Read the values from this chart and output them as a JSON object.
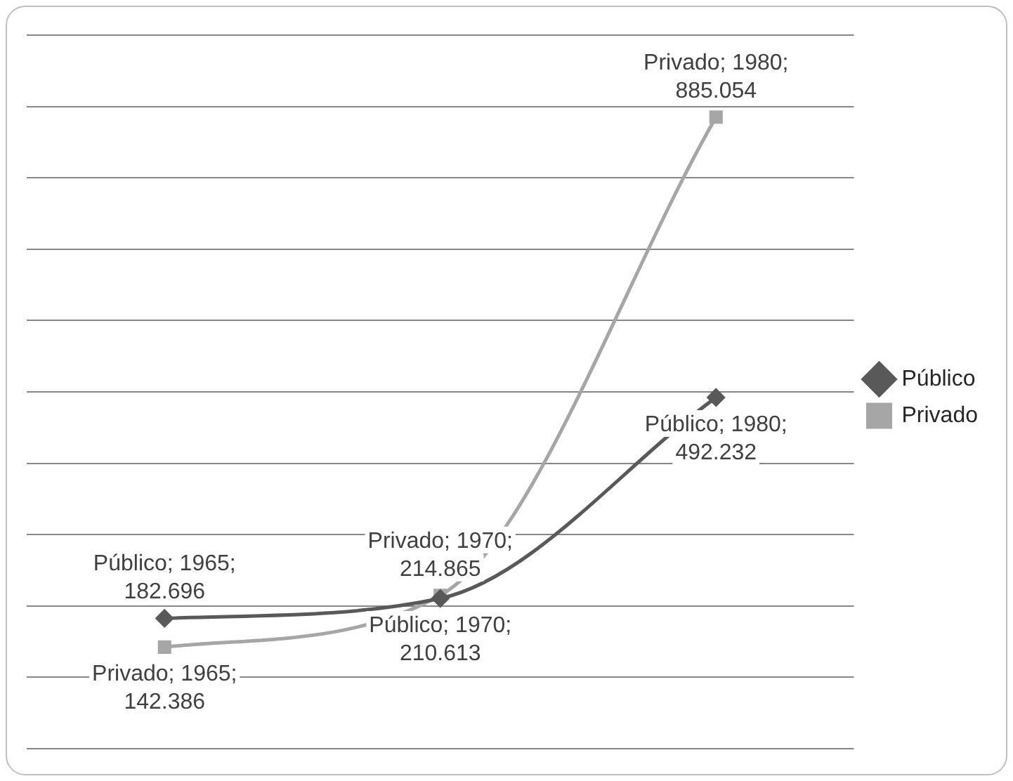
{
  "chart_data": {
    "type": "line",
    "categories": [
      null,
      null,
      null
    ],
    "series": [
      {
        "name": "Público",
        "color": "#595959",
        "marker": "diamond",
        "values": [
          182.696,
          210.613,
          492.232
        ],
        "value_labels": [
          "Público; 1965; 182.696",
          "Público; 1970; 210.613",
          "Público; 1980; 492.232"
        ]
      },
      {
        "name": "Privado",
        "color": "#a6a6a6",
        "marker": "square",
        "values": [
          142.386,
          214.865,
          885.054
        ],
        "value_labels": [
          "Privado; 1965; 142.386",
          "Privado; 1970; 214.865",
          "Privado; 1980; 885.054"
        ]
      }
    ],
    "ylim": [
      0,
      1000
    ],
    "yticks": [
      {
        "value": 0,
        "label": null
      },
      {
        "value": 100,
        "label": null
      },
      {
        "value": 200,
        "label": null
      },
      {
        "value": 300,
        "label": null
      },
      {
        "value": 400,
        "label": null
      },
      {
        "value": 500,
        "label": null
      },
      {
        "value": 600,
        "label": null
      },
      {
        "value": 700,
        "label": null
      },
      {
        "value": 800,
        "label": null
      },
      {
        "value": 900,
        "label": null
      },
      {
        "value": 1000,
        "label": null
      }
    ],
    "tick_labels": false,
    "grid": "y",
    "legend": "right",
    "line_style": "solid"
  }
}
